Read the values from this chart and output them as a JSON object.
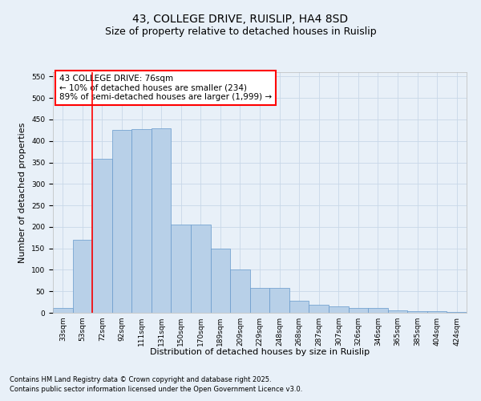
{
  "title": "43, COLLEGE DRIVE, RUISLIP, HA4 8SD",
  "subtitle": "Size of property relative to detached houses in Ruislip",
  "xlabel": "Distribution of detached houses by size in Ruislip",
  "ylabel": "Number of detached properties",
  "categories": [
    "33sqm",
    "53sqm",
    "72sqm",
    "92sqm",
    "111sqm",
    "131sqm",
    "150sqm",
    "170sqm",
    "189sqm",
    "209sqm",
    "229sqm",
    "248sqm",
    "268sqm",
    "287sqm",
    "307sqm",
    "326sqm",
    "346sqm",
    "365sqm",
    "385sqm",
    "404sqm",
    "424sqm"
  ],
  "values": [
    12,
    170,
    358,
    425,
    428,
    430,
    205,
    205,
    150,
    100,
    57,
    57,
    28,
    18,
    15,
    11,
    11,
    6,
    4,
    4,
    1
  ],
  "bar_color": "#b8d0e8",
  "bar_edge_color": "#6699cc",
  "grid_color": "#c8d8e8",
  "background_color": "#e8f0f8",
  "vline_x": 1.5,
  "vline_color": "red",
  "annotation_title": "43 COLLEGE DRIVE: 76sqm",
  "annotation_line1": "← 10% of detached houses are smaller (234)",
  "annotation_line2": "89% of semi-detached houses are larger (1,999) →",
  "ylim": [
    0,
    560
  ],
  "yticks": [
    0,
    50,
    100,
    150,
    200,
    250,
    300,
    350,
    400,
    450,
    500,
    550
  ],
  "footnote1": "Contains HM Land Registry data © Crown copyright and database right 2025.",
  "footnote2": "Contains public sector information licensed under the Open Government Licence v3.0.",
  "title_fontsize": 10,
  "subtitle_fontsize": 9,
  "annotation_fontsize": 7.5,
  "axis_label_fontsize": 8,
  "tick_fontsize": 6.5,
  "footnote_fontsize": 6
}
